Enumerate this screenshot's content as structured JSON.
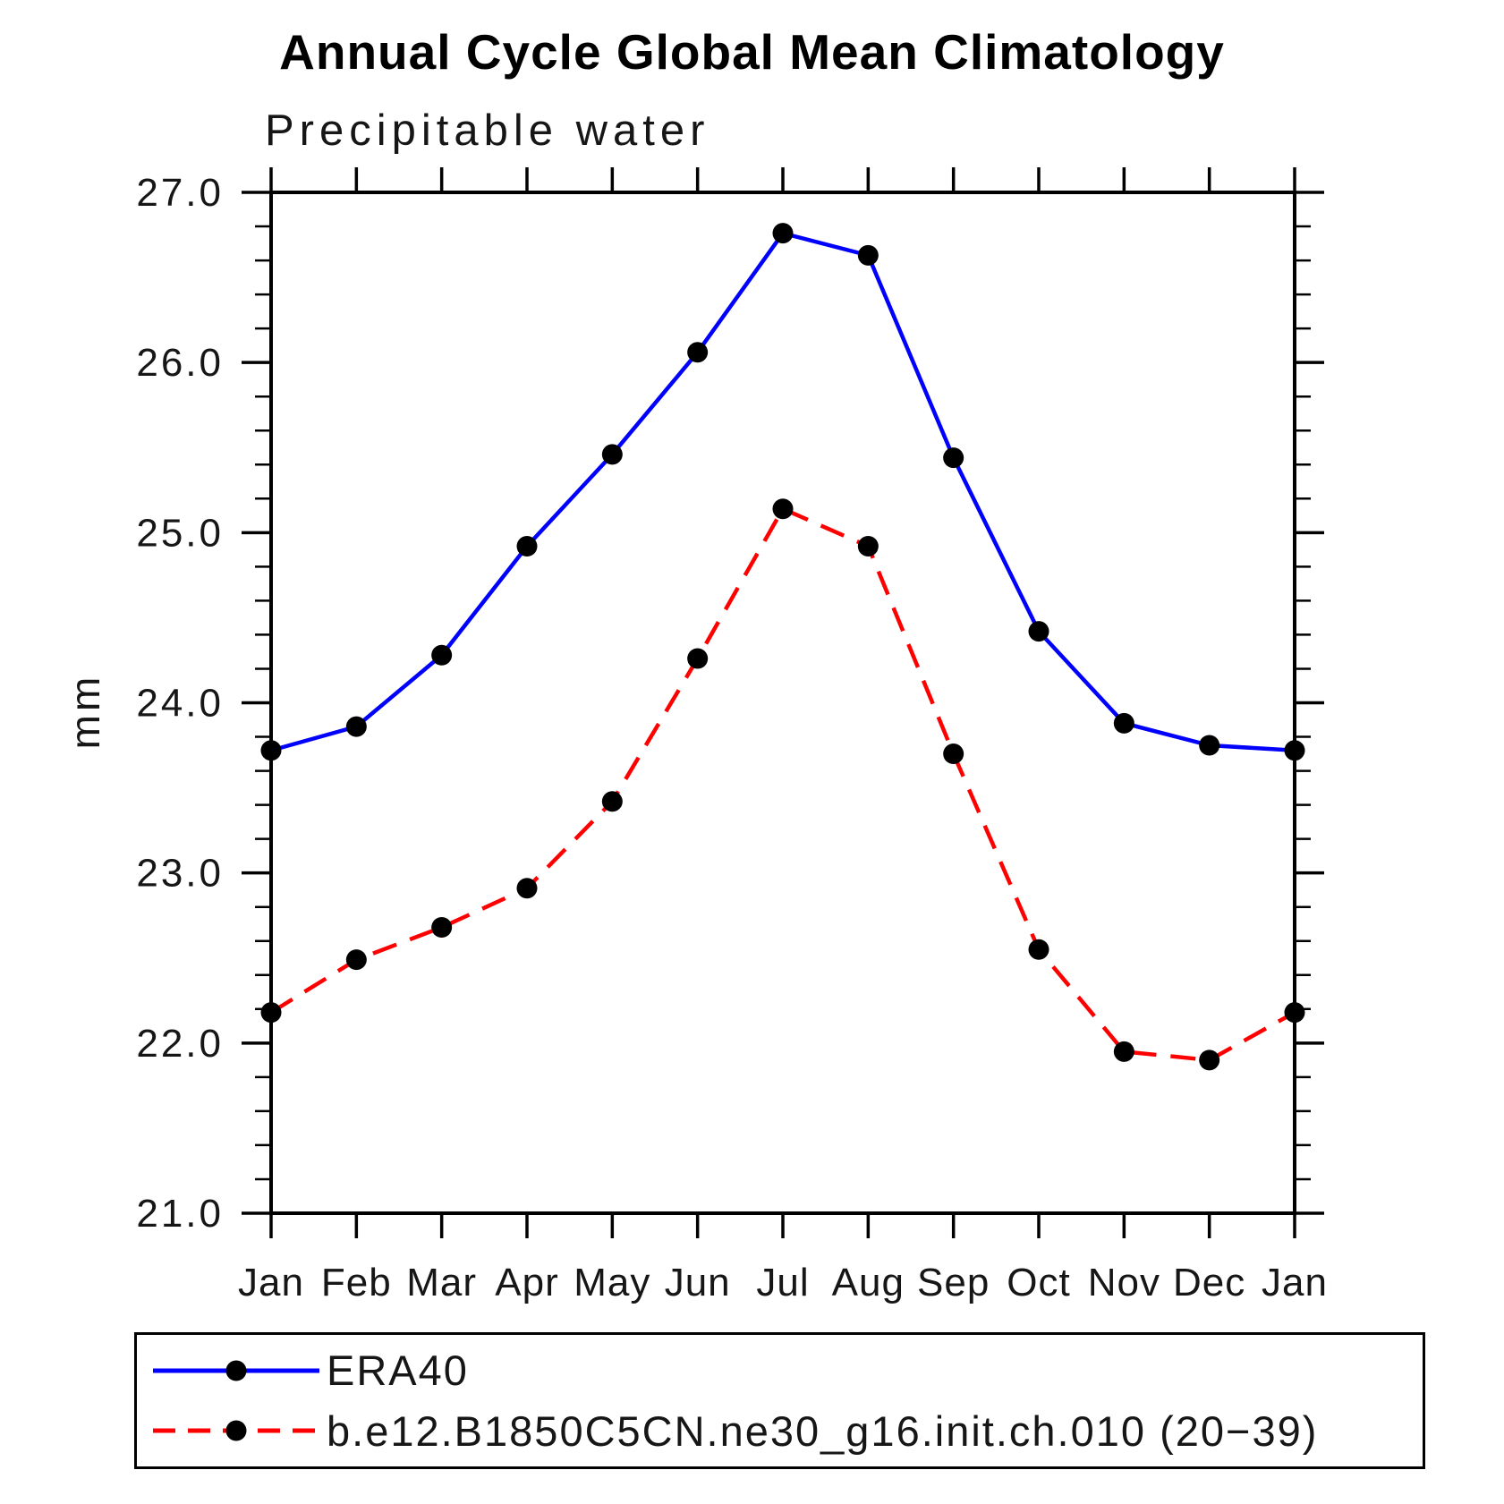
{
  "title": "Annual Cycle Global Mean Climatology",
  "subtitle": "Precipitable water",
  "chart_data": {
    "type": "line",
    "title": "Annual Cycle Global Mean Climatology",
    "subtitle": "Precipitable water",
    "ylabel": "mm",
    "xlabel": "",
    "x_tick_labels": [
      "Jan",
      "Feb",
      "Mar",
      "Apr",
      "May",
      "Jun",
      "Jul",
      "Aug",
      "Sep",
      "Oct",
      "Nov",
      "Dec",
      "Jan"
    ],
    "ylim": [
      21.0,
      27.0
    ],
    "y_tick_values": [
      21.0,
      22.0,
      23.0,
      24.0,
      25.0,
      26.0,
      27.0
    ],
    "y_tick_labels": [
      "21.0",
      "22.0",
      "23.0",
      "24.0",
      "25.0",
      "26.0",
      "27.0"
    ],
    "y_minor_step": 0.2,
    "grid": false,
    "legend_position": "bottom",
    "frame_color": "#000000",
    "marker_color": "#000000",
    "series": [
      {
        "name": "ERA40",
        "color": "#0000ff",
        "line_style": "solid",
        "marker": "circle",
        "values": [
          23.72,
          23.86,
          24.28,
          24.92,
          25.46,
          26.06,
          26.76,
          26.63,
          25.44,
          24.42,
          23.88,
          23.75,
          23.72
        ]
      },
      {
        "name": "b.e12.B1850C5CN.ne30_g16.init.ch.010 (20−39)",
        "color": "#ff0000",
        "line_style": "dashed",
        "marker": "circle",
        "values": [
          22.18,
          22.49,
          22.68,
          22.91,
          23.42,
          24.26,
          25.14,
          24.92,
          23.7,
          22.55,
          21.95,
          21.9,
          22.18
        ]
      }
    ]
  }
}
